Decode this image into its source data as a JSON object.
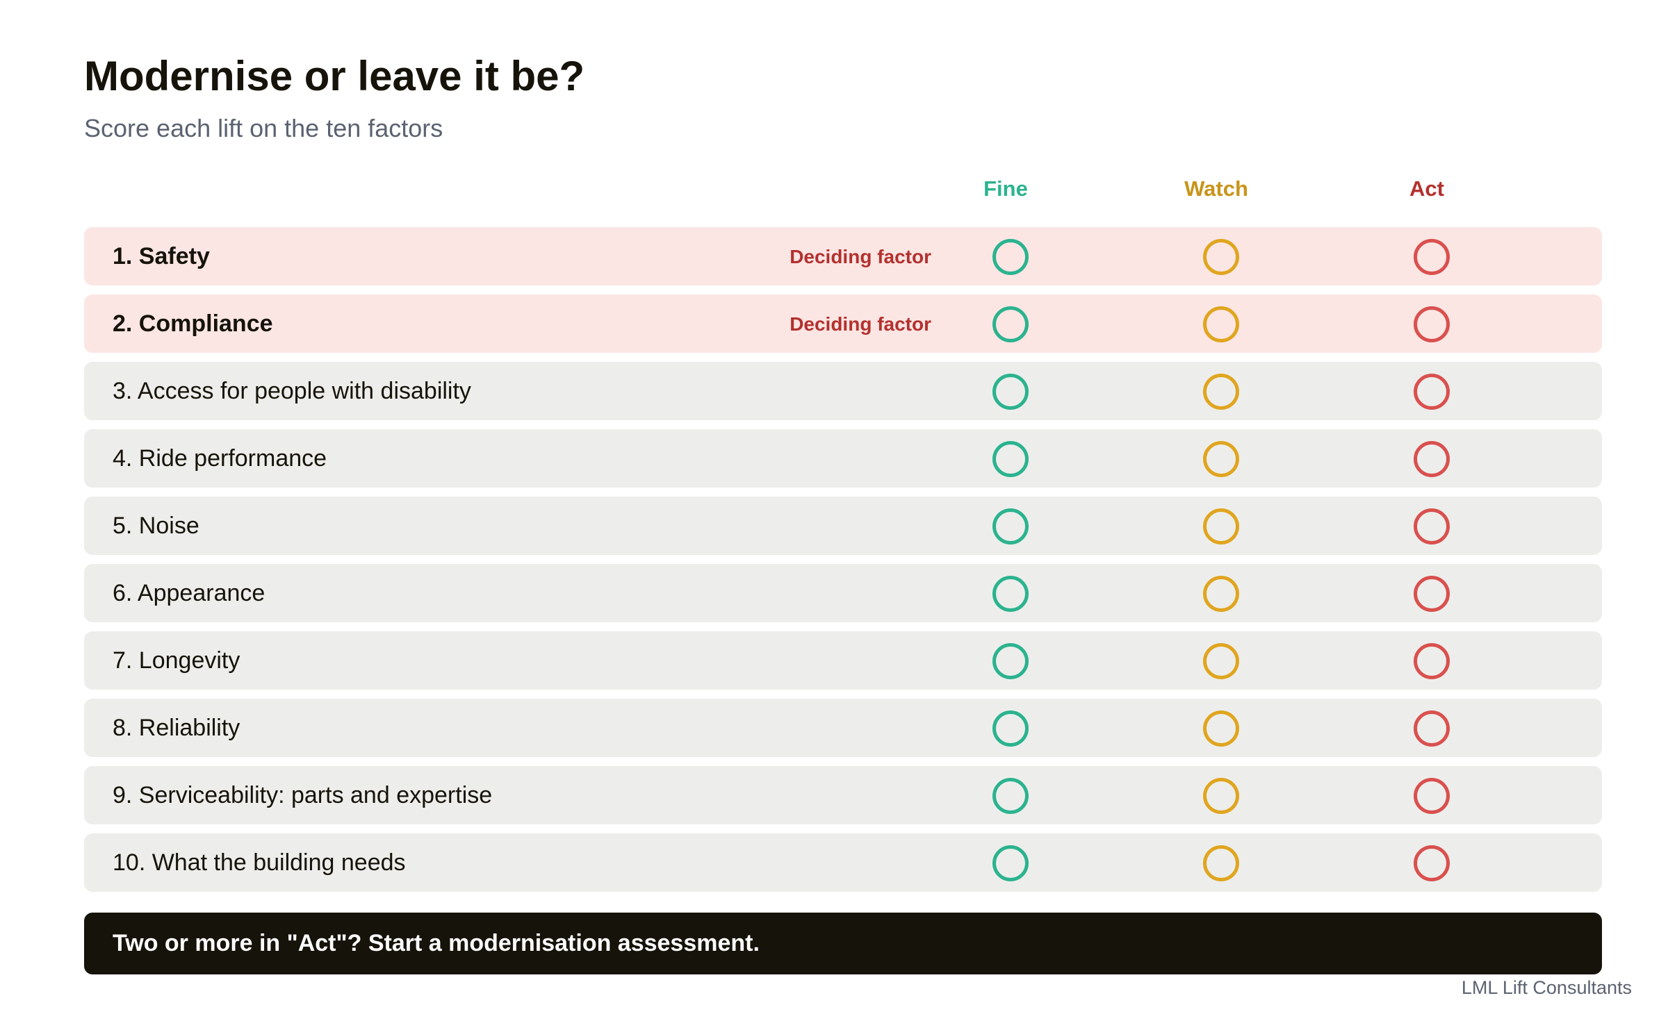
{
  "title": "Modernise or leave it be?",
  "subtitle": "Score each lift on the ten factors",
  "columns": {
    "fine": "Fine",
    "watch": "Watch",
    "act": "Act"
  },
  "deciding_label": "Deciding factor",
  "factors": [
    {
      "label": "1. Safety",
      "deciding": true
    },
    {
      "label": "2. Compliance",
      "deciding": true
    },
    {
      "label": "3. Access for people with disability",
      "deciding": false
    },
    {
      "label": "4. Ride performance",
      "deciding": false
    },
    {
      "label": "5. Noise",
      "deciding": false
    },
    {
      "label": "6. Appearance",
      "deciding": false
    },
    {
      "label": "7. Longevity",
      "deciding": false
    },
    {
      "label": "8. Reliability",
      "deciding": false
    },
    {
      "label": "9. Serviceability: parts and expertise",
      "deciding": false
    },
    {
      "label": "10. What the building needs",
      "deciding": false
    }
  ],
  "cta": "Two or more in \"Act\"? Start a modernisation assessment.",
  "footer": "LML Lift Consultants",
  "colors": {
    "fine": "#2bb38f",
    "watch": "#e0a51f",
    "act": "#d9504e",
    "deciding_row": "#fbe6e4",
    "row": "#edeeeb",
    "cta_background": "#16130a"
  }
}
